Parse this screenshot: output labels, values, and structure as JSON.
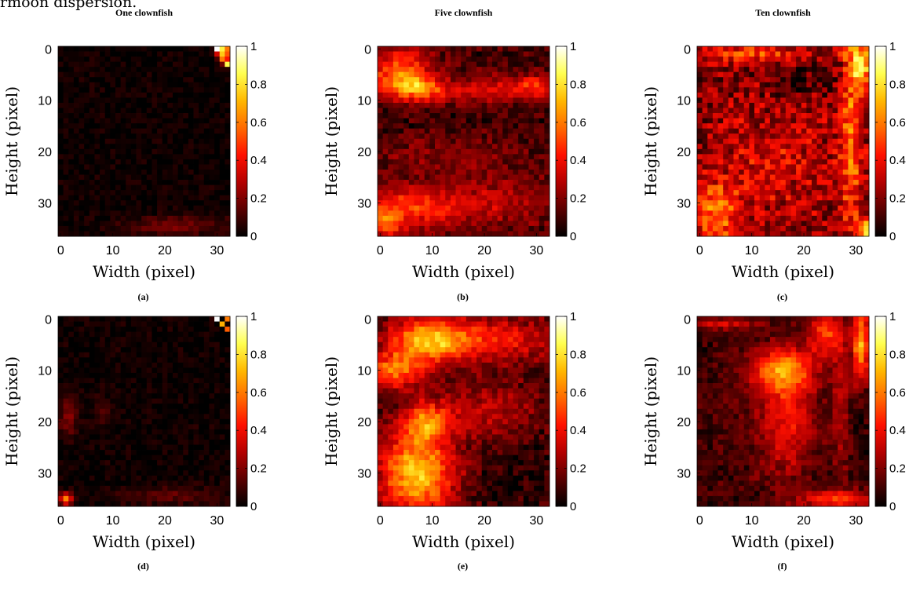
{
  "top_clipped_text": "rmoon dispersion.",
  "figure": {
    "colormap": [
      "#000000",
      "#5a0000",
      "#b40000",
      "#ff1000",
      "#ff6a00",
      "#ffb800",
      "#ffff50",
      "#ffffff"
    ]
  },
  "chart_data": [
    {
      "id": "a",
      "type": "heatmap",
      "title": "One clownfish",
      "sublabel": "(a)",
      "xlabel": "Width (pixel)",
      "ylabel": "Height (pixel)",
      "cols": 33,
      "rows": 37,
      "xlim": [
        0,
        32
      ],
      "ylim": [
        0,
        36
      ],
      "xticks": [
        0,
        10,
        20,
        30
      ],
      "yticks": [
        0,
        10,
        20,
        30
      ],
      "colorbar": {
        "range": [
          0,
          1
        ],
        "ticks": [
          "0",
          "0.2",
          "0.4",
          "0.6",
          "0.8",
          "1"
        ]
      },
      "base": 0.02,
      "blobs": [
        {
          "x": 32,
          "y": 0.5,
          "sx": 1.0,
          "sy": 1.8,
          "v": 0.55
        },
        {
          "x": 30.5,
          "y": 0.2,
          "sx": 0.6,
          "sy": 0.6,
          "v": 0.8
        },
        {
          "x": 22,
          "y": 34.5,
          "sx": 7,
          "sy": 1.4,
          "v": 0.16
        }
      ],
      "cells": [
        [
          30,
          0,
          1.0
        ],
        [
          31,
          1,
          0.75
        ],
        [
          32,
          3,
          0.85
        ],
        [
          31,
          2,
          0.6
        ]
      ]
    },
    {
      "id": "b",
      "type": "heatmap",
      "title": "Five clownfish",
      "sublabel": "(b)",
      "xlabel": "Width (pixel)",
      "ylabel": "Height (pixel)",
      "cols": 33,
      "rows": 37,
      "xlim": [
        0,
        32
      ],
      "ylim": [
        0,
        36
      ],
      "xticks": [
        0,
        10,
        20,
        30
      ],
      "yticks": [
        0,
        10,
        20,
        30
      ],
      "colorbar": {
        "range": [
          0,
          1
        ],
        "ticks": [
          "0",
          "0.2",
          "0.4",
          "0.6",
          "0.8",
          "1"
        ]
      },
      "base": 0.1,
      "blobs": [
        {
          "x": 4,
          "y": 6,
          "sx": 4,
          "sy": 2.5,
          "v": 0.55
        },
        {
          "x": 8,
          "y": 8,
          "sx": 3,
          "sy": 1.5,
          "v": 0.3
        },
        {
          "x": 20,
          "y": 8,
          "sx": 8,
          "sy": 2,
          "v": 0.25
        },
        {
          "x": 30,
          "y": 7,
          "sx": 2.5,
          "sy": 1.5,
          "v": 0.3
        },
        {
          "x": 4,
          "y": 1.5,
          "sx": 5,
          "sy": 1.5,
          "v": 0.2
        },
        {
          "x": 5,
          "y": 31,
          "sx": 6,
          "sy": 3,
          "v": 0.3
        },
        {
          "x": 20,
          "y": 30,
          "sx": 10,
          "sy": 4,
          "v": 0.2
        },
        {
          "x": 1,
          "y": 34,
          "sx": 2,
          "sy": 2,
          "v": 0.35
        },
        {
          "x": 12,
          "y": 20,
          "sx": 12,
          "sy": 2.5,
          "v": 0.1
        }
      ],
      "cells": []
    },
    {
      "id": "c",
      "type": "heatmap",
      "title": "Ten clownfish",
      "sublabel": "(c)",
      "xlabel": "Width (pixel)",
      "ylabel": "Height (pixel)",
      "cols": 33,
      "rows": 37,
      "xlim": [
        0,
        32
      ],
      "ylim": [
        0,
        36
      ],
      "xticks": [
        0,
        10,
        20,
        30
      ],
      "yticks": [
        0,
        10,
        20,
        30
      ],
      "colorbar": {
        "range": [
          0,
          1
        ],
        "ticks": [
          "0",
          "0.2",
          "0.4",
          "0.6",
          "0.8",
          "1"
        ]
      },
      "base": 0.2,
      "blobs": [
        {
          "x": 31,
          "y": 3,
          "sx": 1.8,
          "sy": 3.5,
          "v": 0.55
        },
        {
          "x": 29,
          "y": 18,
          "sx": 1.5,
          "sy": 12,
          "v": 0.35
        },
        {
          "x": 3,
          "y": 32,
          "sx": 3,
          "sy": 4,
          "v": 0.4
        },
        {
          "x": 10,
          "y": 1,
          "sx": 8,
          "sy": 1.2,
          "v": 0.3
        },
        {
          "x": 14,
          "y": 22,
          "sx": 9,
          "sy": 8,
          "v": 0.15
        },
        {
          "x": 20,
          "y": 5,
          "sx": 5,
          "sy": 3,
          "v": -0.1
        },
        {
          "x": 32,
          "y": 35,
          "sx": 1.2,
          "sy": 1.5,
          "v": 0.6
        }
      ],
      "cells": []
    },
    {
      "id": "d",
      "type": "heatmap",
      "title": "",
      "sublabel": "(d)",
      "xlabel": "Width (pixel)",
      "ylabel": "Height (pixel)",
      "cols": 33,
      "rows": 37,
      "xlim": [
        0,
        32
      ],
      "ylim": [
        0,
        36
      ],
      "xticks": [
        0,
        10,
        20,
        30
      ],
      "yticks": [
        0,
        10,
        20,
        30
      ],
      "colorbar": {
        "range": [
          0,
          1
        ],
        "ticks": [
          "0",
          "0.2",
          "0.4",
          "0.6",
          "0.8",
          "1"
        ]
      },
      "base": 0.02,
      "blobs": [
        {
          "x": 1.5,
          "y": 19,
          "sx": 1.2,
          "sy": 3,
          "v": 0.18
        },
        {
          "x": 8,
          "y": 18,
          "sx": 1.2,
          "sy": 2,
          "v": 0.1
        },
        {
          "x": 1,
          "y": 35,
          "sx": 0.8,
          "sy": 0.8,
          "v": 0.6
        },
        {
          "x": 22,
          "y": 34.5,
          "sx": 8,
          "sy": 1.3,
          "v": 0.12
        }
      ],
      "cells": [
        [
          30,
          0,
          1.0
        ],
        [
          31,
          1,
          0.7
        ],
        [
          32,
          2,
          0.55
        ],
        [
          32,
          0,
          0.6
        ]
      ]
    },
    {
      "id": "e",
      "type": "heatmap",
      "title": "",
      "sublabel": "(e)",
      "xlabel": "Width (pixel)",
      "ylabel": "Height (pixel)",
      "cols": 33,
      "rows": 37,
      "xlim": [
        0,
        32
      ],
      "ylim": [
        0,
        36
      ],
      "xticks": [
        0,
        10,
        20,
        30
      ],
      "yticks": [
        0,
        10,
        20,
        30
      ],
      "colorbar": {
        "range": [
          0,
          1
        ],
        "ticks": [
          "0",
          "0.2",
          "0.4",
          "0.6",
          "0.8",
          "1"
        ]
      },
      "base": 0.1,
      "blobs": [
        {
          "x": 9,
          "y": 4,
          "sx": 5,
          "sy": 3,
          "v": 0.5
        },
        {
          "x": 3,
          "y": 10,
          "sx": 4,
          "sy": 2.5,
          "v": 0.45
        },
        {
          "x": 20,
          "y": 4,
          "sx": 9,
          "sy": 3,
          "v": 0.35
        },
        {
          "x": 7,
          "y": 30,
          "sx": 5,
          "sy": 6,
          "v": 0.65
        },
        {
          "x": 9,
          "y": 20,
          "sx": 3,
          "sy": 2.5,
          "v": 0.4
        },
        {
          "x": 20,
          "y": 18,
          "sx": 7,
          "sy": 4,
          "v": 0.2
        },
        {
          "x": 26,
          "y": 30,
          "sx": 5,
          "sy": 5,
          "v": -0.05
        }
      ],
      "cells": []
    },
    {
      "id": "f",
      "type": "heatmap",
      "title": "",
      "sublabel": "(f)",
      "xlabel": "Width (pixel)",
      "ylabel": "Height (pixel)",
      "cols": 33,
      "rows": 37,
      "xlim": [
        0,
        32
      ],
      "ylim": [
        0,
        36
      ],
      "xticks": [
        0,
        10,
        20,
        30
      ],
      "yticks": [
        0,
        10,
        20,
        30
      ],
      "colorbar": {
        "range": [
          0,
          1
        ],
        "ticks": [
          "0",
          "0.2",
          "0.4",
          "0.6",
          "0.8",
          "1"
        ]
      },
      "base": 0.08,
      "blobs": [
        {
          "x": 16,
          "y": 10,
          "sx": 4,
          "sy": 3,
          "v": 0.5
        },
        {
          "x": 17,
          "y": 20,
          "sx": 4,
          "sy": 8,
          "v": 0.3
        },
        {
          "x": 31,
          "y": 5,
          "sx": 1.2,
          "sy": 5,
          "v": 0.6
        },
        {
          "x": 24,
          "y": 3,
          "sx": 2,
          "sy": 3,
          "v": 0.4
        },
        {
          "x": 27,
          "y": 15,
          "sx": 1.2,
          "sy": 12,
          "v": 0.2
        },
        {
          "x": 26,
          "y": 35,
          "sx": 5,
          "sy": 1.2,
          "v": 0.4
        },
        {
          "x": 5,
          "y": 1,
          "sx": 5,
          "sy": 0.8,
          "v": 0.25
        },
        {
          "x": 6,
          "y": 18,
          "sx": 5,
          "sy": 10,
          "v": 0.05
        }
      ],
      "cells": []
    }
  ]
}
